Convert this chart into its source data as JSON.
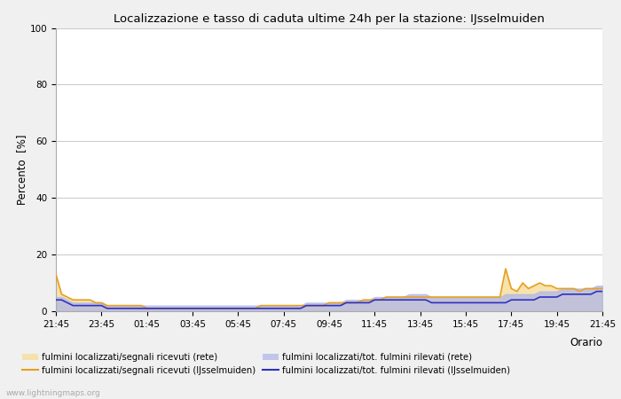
{
  "title": "Localizzazione e tasso di caduta ultime 24h per la stazione: IJsselmuiden",
  "xlabel": "Orario",
  "ylabel": "Percento  [%]",
  "xlim": [
    0,
    96
  ],
  "ylim": [
    0,
    100
  ],
  "yticks": [
    0,
    20,
    40,
    60,
    80,
    100
  ],
  "xtick_labels": [
    "21:45",
    "23:45",
    "01:45",
    "03:45",
    "05:45",
    "07:45",
    "09:45",
    "11:45",
    "13:45",
    "15:45",
    "17:45",
    "19:45",
    "21:45"
  ],
  "xtick_positions": [
    0,
    8,
    16,
    24,
    32,
    40,
    48,
    56,
    64,
    72,
    80,
    88,
    96
  ],
  "bg_color": "#f0f0f0",
  "plot_bg": "#ffffff",
  "grid_color": "#cccccc",
  "watermark": "www.lightningmaps.org",
  "legend": [
    {
      "label": "fulmini localizzati/segnali ricevuti (rete)",
      "type": "fill",
      "color": "#f5dfa0",
      "alpha": 0.85
    },
    {
      "label": "fulmini localizzati/segnali ricevuti (IJsselmuiden)",
      "type": "line",
      "color": "#e8a020",
      "lw": 1.5
    },
    {
      "label": "fulmini localizzati/tot. fulmini rilevati (rete)",
      "type": "fill",
      "color": "#b0b8e8",
      "alpha": 0.75
    },
    {
      "label": "fulmini localizzati/tot. fulmini rilevati (IJsselmuiden)",
      "type": "line",
      "color": "#3030c0",
      "lw": 1.5
    }
  ],
  "orange_line": [
    13,
    6,
    5,
    4,
    4,
    4,
    4,
    3,
    3,
    2,
    2,
    2,
    2,
    2,
    2,
    2,
    1,
    1,
    1,
    1,
    1,
    1,
    1,
    1,
    1,
    1,
    1,
    1,
    1,
    1,
    1,
    1,
    1,
    1,
    1,
    1,
    2,
    2,
    2,
    2,
    2,
    2,
    2,
    2,
    2,
    2,
    2,
    2,
    3,
    3,
    3,
    3,
    3,
    3,
    4,
    4,
    4,
    4,
    5,
    5,
    5,
    5,
    5,
    5,
    5,
    5,
    5,
    5,
    5,
    5,
    5,
    5,
    5,
    5,
    5,
    5,
    5,
    5,
    5,
    15,
    8,
    7,
    10,
    8,
    9,
    10,
    9,
    9,
    8,
    8,
    8,
    8,
    7,
    8,
    8,
    8,
    8
  ],
  "blue_line": [
    4,
    4,
    3,
    2,
    2,
    2,
    2,
    2,
    2,
    1,
    1,
    1,
    1,
    1,
    1,
    1,
    1,
    1,
    1,
    1,
    1,
    1,
    1,
    1,
    1,
    1,
    1,
    1,
    1,
    1,
    1,
    1,
    1,
    1,
    1,
    1,
    1,
    1,
    1,
    1,
    1,
    1,
    1,
    1,
    2,
    2,
    2,
    2,
    2,
    2,
    2,
    3,
    3,
    3,
    3,
    3,
    4,
    4,
    4,
    4,
    4,
    4,
    4,
    4,
    4,
    4,
    3,
    3,
    3,
    3,
    3,
    3,
    3,
    3,
    3,
    3,
    3,
    3,
    3,
    3,
    4,
    4,
    4,
    4,
    4,
    5,
    5,
    5,
    5,
    6,
    6,
    6,
    6,
    6,
    6,
    7,
    7
  ],
  "orange_fill_upper": [
    13,
    6,
    5,
    4,
    4,
    4,
    4,
    3,
    3,
    2,
    2,
    2,
    2,
    2,
    2,
    2,
    1,
    1,
    1,
    1,
    1,
    1,
    1,
    1,
    1,
    1,
    1,
    1,
    1,
    1,
    1,
    1,
    1,
    1,
    1,
    1,
    2,
    2,
    2,
    2,
    2,
    2,
    2,
    2,
    2,
    2,
    2,
    2,
    3,
    3,
    3,
    3,
    3,
    3,
    4,
    4,
    4,
    4,
    5,
    5,
    5,
    5,
    5,
    5,
    5,
    5,
    5,
    5,
    5,
    5,
    5,
    5,
    5,
    5,
    5,
    5,
    5,
    5,
    5,
    15,
    8,
    7,
    10,
    8,
    9,
    10,
    9,
    9,
    8,
    8,
    8,
    8,
    7,
    8,
    8,
    8,
    8
  ],
  "blue_fill_upper": [
    5,
    5,
    4,
    3,
    3,
    3,
    3,
    3,
    3,
    2,
    2,
    2,
    2,
    2,
    2,
    2,
    2,
    2,
    2,
    2,
    2,
    2,
    2,
    2,
    2,
    2,
    2,
    2,
    2,
    2,
    2,
    2,
    2,
    2,
    2,
    2,
    2,
    2,
    2,
    2,
    2,
    2,
    2,
    2,
    3,
    3,
    3,
    3,
    3,
    3,
    3,
    4,
    4,
    4,
    4,
    4,
    5,
    5,
    5,
    5,
    5,
    5,
    6,
    6,
    6,
    6,
    5,
    5,
    5,
    5,
    5,
    5,
    5,
    5,
    5,
    5,
    5,
    5,
    5,
    6,
    6,
    6,
    6,
    6,
    6,
    7,
    7,
    7,
    7,
    8,
    8,
    8,
    8,
    8,
    8,
    9,
    9
  ]
}
